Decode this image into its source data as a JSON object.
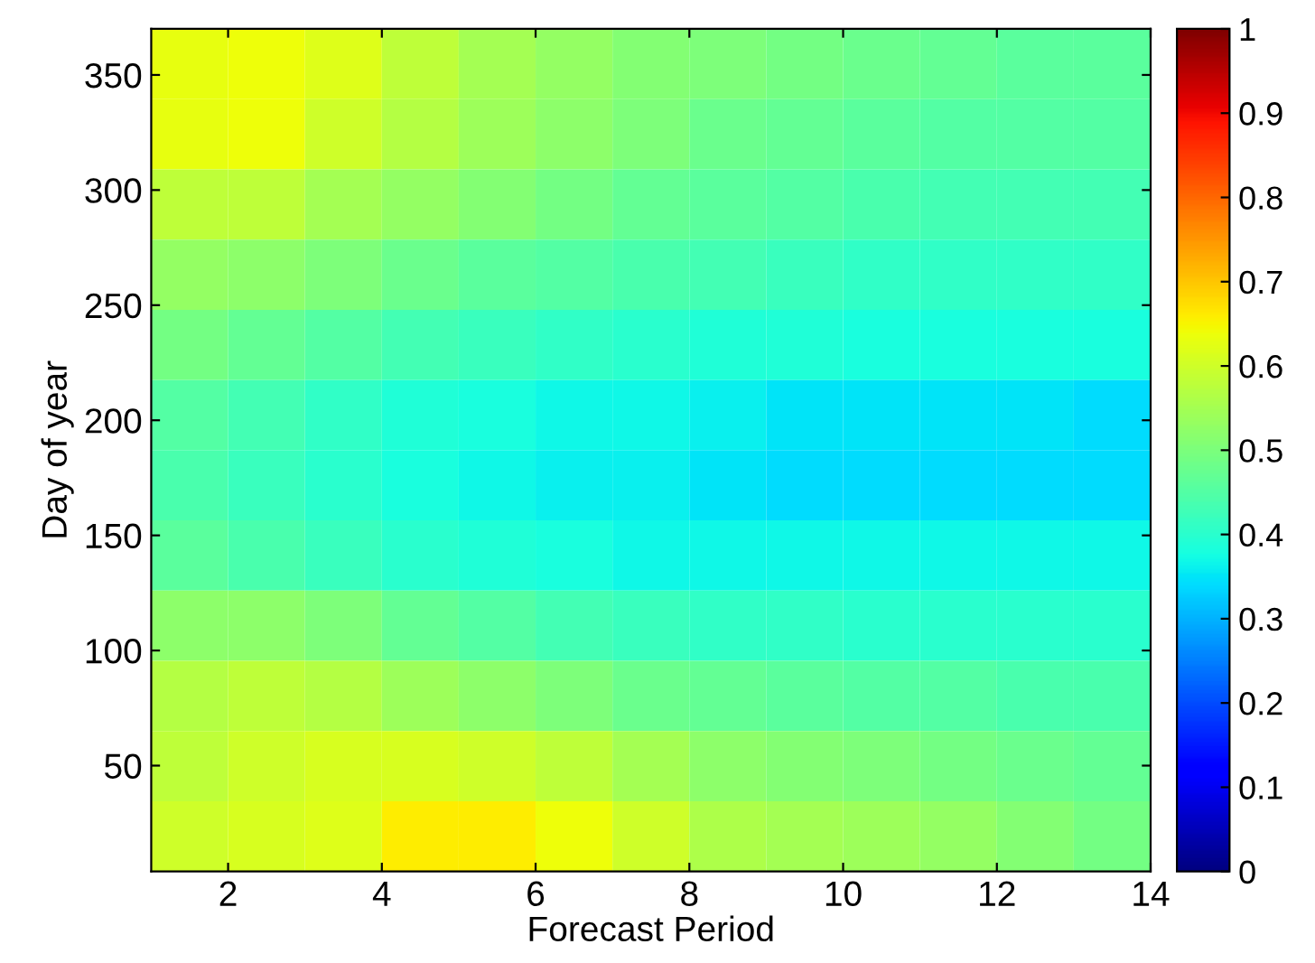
{
  "chart_data": {
    "type": "heatmap",
    "xlabel": "Forecast Period",
    "ylabel": "Day of year",
    "x": [
      1.5,
      2.5,
      3.5,
      4.5,
      5.5,
      6.5,
      7.5,
      8.5,
      9.5,
      10.5,
      11.5,
      12.5,
      13.5
    ],
    "y": [
      354.75,
      324.25,
      293.75,
      263.25,
      232.75,
      202.25,
      171.75,
      141.25,
      110.75,
      80.25,
      49.75,
      19.25
    ],
    "xlim": [
      1,
      14
    ],
    "xticks": [
      2,
      4,
      6,
      8,
      10,
      12,
      14
    ],
    "ylim": [
      4,
      370
    ],
    "yticks": [
      50,
      100,
      150,
      200,
      250,
      300,
      350
    ],
    "clim": [
      0,
      1
    ],
    "cticks": [
      0,
      0.1,
      0.2,
      0.3,
      0.4,
      0.5,
      0.6,
      0.7,
      0.8,
      0.9,
      1
    ],
    "grid": false,
    "cells": [
      [
        0.63,
        0.64,
        0.62,
        0.58,
        0.55,
        0.53,
        0.51,
        0.5,
        0.49,
        0.48,
        0.47,
        0.46,
        0.46
      ],
      [
        0.63,
        0.64,
        0.6,
        0.57,
        0.54,
        0.52,
        0.5,
        0.48,
        0.47,
        0.46,
        0.45,
        0.45,
        0.45
      ],
      [
        0.58,
        0.58,
        0.55,
        0.53,
        0.51,
        0.49,
        0.47,
        0.46,
        0.45,
        0.44,
        0.43,
        0.43,
        0.43
      ],
      [
        0.53,
        0.52,
        0.5,
        0.48,
        0.46,
        0.45,
        0.44,
        0.43,
        0.42,
        0.41,
        0.41,
        0.41,
        0.41
      ],
      [
        0.49,
        0.47,
        0.45,
        0.43,
        0.42,
        0.41,
        0.4,
        0.39,
        0.39,
        0.38,
        0.38,
        0.38,
        0.38
      ],
      [
        0.45,
        0.43,
        0.41,
        0.39,
        0.38,
        0.37,
        0.37,
        0.36,
        0.35,
        0.35,
        0.35,
        0.35,
        0.34
      ],
      [
        0.44,
        0.42,
        0.4,
        0.38,
        0.37,
        0.36,
        0.36,
        0.35,
        0.34,
        0.34,
        0.34,
        0.34,
        0.34
      ],
      [
        0.46,
        0.44,
        0.42,
        0.4,
        0.39,
        0.38,
        0.37,
        0.37,
        0.37,
        0.37,
        0.37,
        0.37,
        0.37
      ],
      [
        0.52,
        0.52,
        0.5,
        0.47,
        0.45,
        0.43,
        0.42,
        0.41,
        0.41,
        0.4,
        0.4,
        0.4,
        0.4
      ],
      [
        0.57,
        0.58,
        0.57,
        0.54,
        0.52,
        0.5,
        0.48,
        0.47,
        0.46,
        0.45,
        0.45,
        0.44,
        0.44
      ],
      [
        0.58,
        0.6,
        0.61,
        0.61,
        0.6,
        0.58,
        0.55,
        0.52,
        0.51,
        0.5,
        0.49,
        0.48,
        0.47
      ],
      [
        0.6,
        0.61,
        0.62,
        0.66,
        0.66,
        0.64,
        0.6,
        0.56,
        0.55,
        0.54,
        0.53,
        0.51,
        0.49
      ]
    ]
  }
}
